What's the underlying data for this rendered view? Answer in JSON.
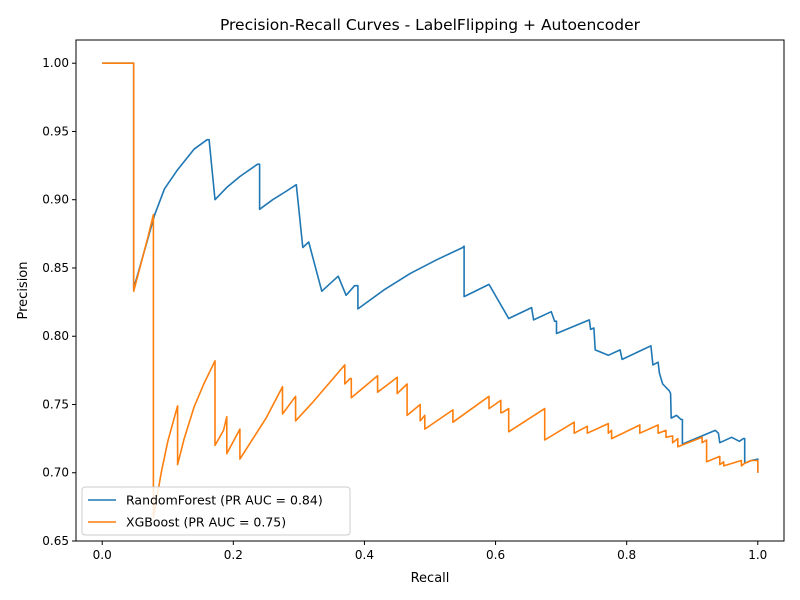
{
  "chart_data": {
    "type": "line",
    "title": "Precision-Recall Curves - LabelFlipping + Autoencoder",
    "xlabel": "Recall",
    "ylabel": "Precision",
    "xlim": [
      -0.04,
      1.04
    ],
    "ylim": [
      0.65,
      1.017
    ],
    "xticks": [
      "0.0",
      "0.2",
      "0.4",
      "0.6",
      "0.8",
      "1.0"
    ],
    "yticks": [
      "0.65",
      "0.70",
      "0.75",
      "0.80",
      "0.85",
      "0.90",
      "0.95",
      "1.00"
    ],
    "legend_position": "lower-left",
    "grid": false,
    "series": [
      {
        "name": "RandomForest (PR AUC = 0.84)",
        "color": "#1f77b4",
        "x": [
          0.0,
          0.048,
          0.048,
          0.07,
          0.08,
          0.095,
          0.115,
          0.14,
          0.16,
          0.163,
          0.172,
          0.19,
          0.21,
          0.237,
          0.24,
          0.24,
          0.26,
          0.28,
          0.296,
          0.306,
          0.306,
          0.315,
          0.335,
          0.36,
          0.372,
          0.385,
          0.39,
          0.39,
          0.43,
          0.47,
          0.51,
          0.55,
          0.552,
          0.552,
          0.59,
          0.62,
          0.655,
          0.658,
          0.685,
          0.69,
          0.693,
          0.693,
          0.743,
          0.745,
          0.75,
          0.752,
          0.772,
          0.79,
          0.793,
          0.837,
          0.84,
          0.848,
          0.85,
          0.855,
          0.865,
          0.867,
          0.868,
          0.876,
          0.883,
          0.885,
          0.885,
          0.935,
          0.94,
          0.942,
          0.96,
          0.972,
          0.978,
          0.98,
          0.98,
          0.99,
          1.0,
          1.0
        ],
        "y": [
          1.0,
          1.0,
          0.835,
          0.872,
          0.889,
          0.908,
          0.922,
          0.937,
          0.944,
          0.944,
          0.9,
          0.909,
          0.917,
          0.926,
          0.926,
          0.893,
          0.9,
          0.906,
          0.911,
          0.865,
          0.865,
          0.869,
          0.833,
          0.844,
          0.83,
          0.837,
          0.837,
          0.82,
          0.834,
          0.846,
          0.856,
          0.865,
          0.866,
          0.829,
          0.838,
          0.813,
          0.821,
          0.812,
          0.818,
          0.811,
          0.811,
          0.802,
          0.812,
          0.805,
          0.806,
          0.79,
          0.786,
          0.79,
          0.783,
          0.793,
          0.779,
          0.781,
          0.773,
          0.765,
          0.76,
          0.758,
          0.74,
          0.742,
          0.739,
          0.739,
          0.721,
          0.731,
          0.729,
          0.722,
          0.726,
          0.723,
          0.725,
          0.725,
          0.707,
          0.709,
          0.71,
          0.7
        ]
      },
      {
        "name": "XGBoost (PR AUC = 0.75)",
        "color": "#ff7f0e",
        "x": [
          0.0,
          0.048,
          0.048,
          0.07,
          0.078,
          0.078,
          0.09,
          0.1,
          0.115,
          0.115,
          0.125,
          0.14,
          0.155,
          0.172,
          0.172,
          0.185,
          0.19,
          0.19,
          0.21,
          0.21,
          0.23,
          0.25,
          0.275,
          0.275,
          0.295,
          0.295,
          0.32,
          0.345,
          0.37,
          0.37,
          0.378,
          0.38,
          0.38,
          0.42,
          0.42,
          0.445,
          0.45,
          0.45,
          0.465,
          0.465,
          0.485,
          0.485,
          0.492,
          0.492,
          0.535,
          0.535,
          0.59,
          0.59,
          0.608,
          0.608,
          0.61,
          0.62,
          0.62,
          0.675,
          0.675,
          0.72,
          0.72,
          0.74,
          0.74,
          0.772,
          0.772,
          0.777,
          0.777,
          0.82,
          0.82,
          0.848,
          0.848,
          0.86,
          0.86,
          0.87,
          0.87,
          0.878,
          0.878,
          0.915,
          0.915,
          0.922,
          0.922,
          0.942,
          0.942,
          0.948,
          0.948,
          0.975,
          0.975,
          0.98,
          0.98,
          0.99,
          1.0,
          1.0
        ],
        "y": [
          1.0,
          1.0,
          0.833,
          0.873,
          0.889,
          0.667,
          0.7,
          0.723,
          0.749,
          0.706,
          0.725,
          0.748,
          0.765,
          0.782,
          0.72,
          0.731,
          0.741,
          0.714,
          0.732,
          0.71,
          0.725,
          0.74,
          0.763,
          0.743,
          0.756,
          0.738,
          0.751,
          0.765,
          0.779,
          0.765,
          0.769,
          0.769,
          0.755,
          0.771,
          0.759,
          0.768,
          0.77,
          0.758,
          0.765,
          0.742,
          0.75,
          0.738,
          0.742,
          0.732,
          0.746,
          0.737,
          0.756,
          0.747,
          0.753,
          0.744,
          0.744,
          0.747,
          0.73,
          0.747,
          0.724,
          0.737,
          0.729,
          0.734,
          0.729,
          0.736,
          0.729,
          0.731,
          0.725,
          0.735,
          0.729,
          0.735,
          0.729,
          0.731,
          0.726,
          0.727,
          0.722,
          0.725,
          0.719,
          0.726,
          0.722,
          0.724,
          0.708,
          0.712,
          0.706,
          0.708,
          0.705,
          0.709,
          0.705,
          0.707,
          0.707,
          0.709,
          0.709,
          0.7
        ]
      }
    ]
  }
}
